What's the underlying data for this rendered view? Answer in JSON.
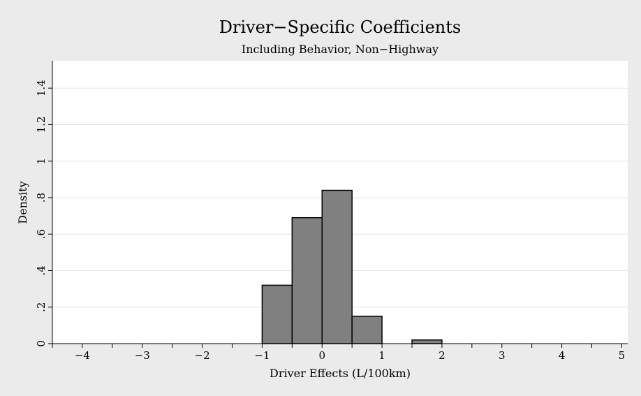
{
  "chart_data": {
    "type": "bar",
    "title": "Driver−Specific Coefficients",
    "subtitle": "Including Behavior, Non−Highway",
    "xlabel": "Driver Effects (L/100km)",
    "ylabel": "Density",
    "xlim": [
      -4.5,
      5.1
    ],
    "ylim": [
      0,
      1.55
    ],
    "x_ticks": [
      -4,
      -3,
      -2,
      -1,
      0,
      1,
      2,
      3,
      4,
      5
    ],
    "x_tick_labels": [
      "−4",
      "−3",
      "−2",
      "−1",
      "0",
      "1",
      "2",
      "3",
      "4",
      "5"
    ],
    "x_minor_ticks": [
      -4.5,
      -3.5,
      -2.5,
      -1.5,
      -0.5,
      0.5,
      1.5,
      2.5,
      3.5,
      4.5
    ],
    "y_ticks": [
      0,
      0.2,
      0.4,
      0.6,
      0.8,
      1,
      1.2,
      1.4
    ],
    "y_tick_labels": [
      "0",
      ".2",
      ".4",
      ".6",
      ".8",
      "1",
      "1.2",
      "1.4"
    ],
    "bin_width": 0.5,
    "bins": [
      {
        "start": -1.0,
        "end": -0.5,
        "density": 0.32
      },
      {
        "start": -0.5,
        "end": 0.0,
        "density": 0.69
      },
      {
        "start": 0.0,
        "end": 0.5,
        "density": 0.84
      },
      {
        "start": 0.5,
        "end": 1.0,
        "density": 0.15
      },
      {
        "start": 1.5,
        "end": 2.0,
        "density": 0.02
      }
    ],
    "grid": true,
    "colors": {
      "background": "#ebebeb",
      "plot_background": "#ffffff",
      "bar_fill": "#808080",
      "bar_stroke": "#000000",
      "grid": "#e4e4e4"
    }
  }
}
